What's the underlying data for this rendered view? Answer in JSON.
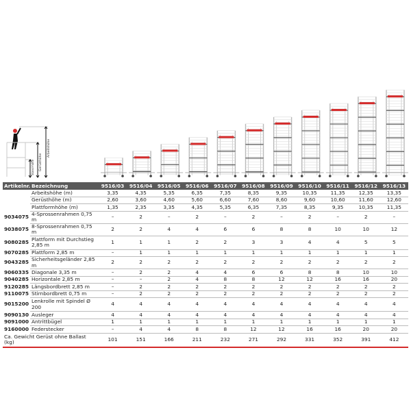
{
  "diagram": {
    "labels": {
      "stand": "Stand-höhe",
      "geruest": "Gerüsthöhe",
      "arbeit": "Arbeitshöhe"
    },
    "colors": {
      "frame": "#b8b8b8",
      "platform": "#d42a2a",
      "person": "#111111",
      "helmet": "#d42a2a"
    }
  },
  "table": {
    "header": {
      "article": "Artikelnr.",
      "description": "Bezeichnung"
    },
    "models": [
      "9516/03",
      "9516/04",
      "9516/05",
      "9516/06",
      "9516/07",
      "9516/08",
      "9516/09",
      "9516/10",
      "9516/11",
      "9516/12",
      "9516/13"
    ],
    "rows": [
      {
        "article": "",
        "description": "Arbeitshöhe (m)",
        "values": [
          "3,35",
          "4,35",
          "5,35",
          "6,35",
          "7,35",
          "8,35",
          "9,35",
          "10,35",
          "11,35",
          "12,35",
          "13,35"
        ]
      },
      {
        "article": "",
        "description": "Gerüsthöhe (m)",
        "values": [
          "2,60",
          "3,60",
          "4,60",
          "5,60",
          "6,60",
          "7,60",
          "8,60",
          "9,60",
          "10,60",
          "11,60",
          "12,60"
        ]
      },
      {
        "article": "",
        "description": "Plattformhöhe (m)",
        "values": [
          "1,35",
          "2,35",
          "3,35",
          "4,35",
          "5,35",
          "6,35",
          "7,35",
          "8,35",
          "9,35",
          "10,35",
          "11,35"
        ]
      },
      {
        "article": "9034075",
        "description": "4-Sprossenrahmen 0,75 m",
        "values": [
          "–",
          "2",
          "–",
          "2",
          "–",
          "2",
          "–",
          "2",
          "–",
          "2",
          "–"
        ]
      },
      {
        "article": "9038075",
        "description": "8-Sprossenrahmen 0,75 m",
        "values": [
          "2",
          "2",
          "4",
          "4",
          "6",
          "6",
          "8",
          "8",
          "10",
          "10",
          "12"
        ]
      },
      {
        "article": "9080285",
        "description": "Plattform mit Durchstieg 2,85 m",
        "double": true,
        "values": [
          "1",
          "1",
          "1",
          "2",
          "2",
          "3",
          "3",
          "4",
          "4",
          "5",
          "5"
        ]
      },
      {
        "article": "9070285",
        "description": "Plattform 2,85 m",
        "values": [
          "–",
          "1",
          "1",
          "1",
          "1",
          "1",
          "1",
          "1",
          "1",
          "1",
          "1"
        ]
      },
      {
        "article": "9043285",
        "description": "Sicherheitsgeländer 2,85 m",
        "values": [
          "2",
          "2",
          "2",
          "2",
          "2",
          "2",
          "2",
          "2",
          "2",
          "2",
          "2"
        ]
      },
      {
        "article": "9060335",
        "description": "Diagonale 3,35 m",
        "values": [
          "–",
          "2",
          "2",
          "4",
          "4",
          "6",
          "6",
          "8",
          "8",
          "10",
          "10"
        ]
      },
      {
        "article": "9040285",
        "description": "Horizontale 2,85 m",
        "values": [
          "–",
          "–",
          "2",
          "4",
          "8",
          "8",
          "12",
          "12",
          "16",
          "16",
          "20"
        ]
      },
      {
        "article": "9120285",
        "description": "Längsbordbrett 2,85 m",
        "values": [
          "–",
          "2",
          "2",
          "2",
          "2",
          "2",
          "2",
          "2",
          "2",
          "2",
          "2"
        ]
      },
      {
        "article": "9110075",
        "description": "Stirnbordbrett 0,75 m",
        "values": [
          "–",
          "2",
          "2",
          "2",
          "2",
          "2",
          "2",
          "2",
          "2",
          "2",
          "2"
        ]
      },
      {
        "article": "9015200",
        "description": "Lenkrolle mit Spindel Ø 200",
        "double": true,
        "values": [
          "4",
          "4",
          "4",
          "4",
          "4",
          "4",
          "4",
          "4",
          "4",
          "4",
          "4"
        ]
      },
      {
        "article": "9090130",
        "description": "Ausleger",
        "values": [
          "4",
          "4",
          "4",
          "4",
          "4",
          "4",
          "4",
          "4",
          "4",
          "4",
          "4"
        ]
      },
      {
        "article": "9091000",
        "description": "Antrittbügel",
        "values": [
          "1",
          "1",
          "1",
          "1",
          "1",
          "1",
          "1",
          "1",
          "1",
          "1",
          "1"
        ]
      },
      {
        "article": "9160000",
        "description": "Federstecker",
        "values": [
          "–",
          "4",
          "4",
          "8",
          "8",
          "12",
          "12",
          "16",
          "16",
          "20",
          "20"
        ]
      },
      {
        "article": "Ca. Gewicht Gerüst ohne Ballast (kg)",
        "description": "",
        "double": true,
        "last": true,
        "values": [
          "101",
          "151",
          "166",
          "211",
          "232",
          "271",
          "292",
          "331",
          "352",
          "391",
          "412"
        ]
      }
    ]
  }
}
